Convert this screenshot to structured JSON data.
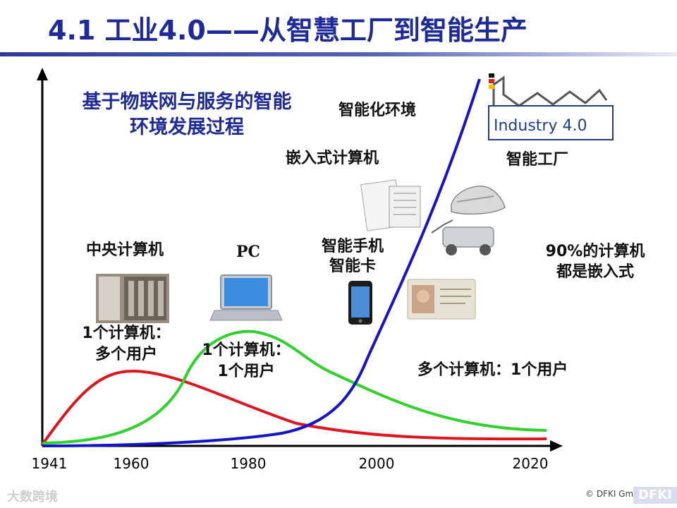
{
  "title": "4.1 工业4.0——从智慧工厂到智能生产",
  "subtitle": {
    "line1": "基于物联网与服务的智能",
    "line2": "环境发展过程"
  },
  "labels": {
    "smart_env": "智能化环境",
    "embedded": "嵌入式计算机",
    "smart_factory": "智能工厂",
    "mainframe": "中央计算机",
    "pc": "PC",
    "smartphone_1": "智能手机",
    "smartphone_2": "智能卡",
    "embedded_90_1": "90%的计算机",
    "embedded_90_2": "都是嵌入式",
    "mainframe_users_1": "1个计算机：",
    "mainframe_users_2": "多个用户",
    "pc_users_1": "1个计算机：",
    "pc_users_2": "1个用户",
    "many_computers": "多个计算机：1个用户"
  },
  "logo": {
    "text": "Industry 4.0"
  },
  "x_axis": {
    "ticks": [
      "1941",
      "1960",
      "1980",
      "2000",
      "2020"
    ]
  },
  "footer": {
    "watermark": "大数跨境",
    "copyright": "© DFKI GmbH",
    "brand": "DFKI"
  },
  "colors": {
    "title": "#1f2a9a",
    "mainframe_curve": "#e0141e",
    "pc_curve": "#2fd22a",
    "embedded_curve": "#1414cc",
    "axis": "#000000"
  },
  "icons": [
    "mainframe-photo-icon",
    "laptop-icon",
    "smartphone-icon",
    "id-card-icon",
    "documents-icon",
    "shoe-icon",
    "robot-car-icon",
    "factory-icon"
  ]
}
